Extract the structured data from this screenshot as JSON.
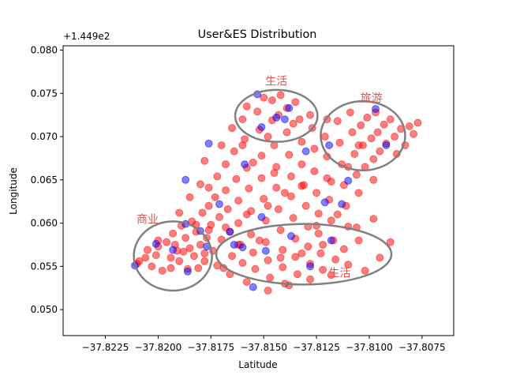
{
  "chart_data": {
    "type": "scatter",
    "title": "User&ES Distribution",
    "xlabel": "Latitude",
    "ylabel": "Longitude",
    "y_offset_label": "+1.449e2",
    "xlim": [
      -37.8245,
      -37.806
    ],
    "ylim": [
      0.047,
      0.0805
    ],
    "x_ticks": [
      -37.8225,
      -37.82,
      -37.8175,
      -37.815,
      -37.8125,
      -37.81,
      -37.8075
    ],
    "x_tick_labels": [
      "−37.8225",
      "−37.8200",
      "−37.8175",
      "−37.8150",
      "−37.8125",
      "−37.8100",
      "−37.8075"
    ],
    "y_ticks": [
      0.05,
      0.055,
      0.06,
      0.065,
      0.07,
      0.075,
      0.08
    ],
    "y_tick_labels": [
      "0.050",
      "0.055",
      "0.060",
      "0.065",
      "0.070",
      "0.075",
      "0.080"
    ],
    "grid": false,
    "legend": "none",
    "series": [
      {
        "color": "#ff0000",
        "opacity": 0.5,
        "points": [
          [
            -37.8209,
            0.0556
          ],
          [
            -37.8205,
            0.0569
          ],
          [
            -37.8203,
            0.055
          ],
          [
            -37.8201,
            0.0563
          ],
          [
            -37.82,
            0.0573
          ],
          [
            -37.8198,
            0.0545
          ],
          [
            -37.8196,
            0.0578
          ],
          [
            -37.8194,
            0.056
          ],
          [
            -37.8193,
            0.0588
          ],
          [
            -37.8191,
            0.0568
          ],
          [
            -37.819,
            0.0556
          ],
          [
            -37.8189,
            0.0597
          ],
          [
            -37.8187,
            0.0583
          ],
          [
            -37.8186,
            0.0547
          ],
          [
            -37.8185,
            0.0571
          ],
          [
            -37.8184,
            0.0602
          ],
          [
            -37.8183,
            0.0562
          ],
          [
            -37.8182,
            0.059
          ],
          [
            -37.8181,
            0.0548
          ],
          [
            -37.818,
            0.0575
          ],
          [
            -37.8179,
            0.0612
          ],
          [
            -37.8178,
            0.0556
          ],
          [
            -37.8177,
            0.0583
          ],
          [
            -37.8176,
            0.062
          ],
          [
            -37.8176,
            0.0641
          ],
          [
            -37.8175,
            0.0598
          ],
          [
            -37.8174,
            0.0568
          ],
          [
            -37.8173,
            0.063
          ],
          [
            -37.8172,
            0.0654
          ],
          [
            -37.8171,
            0.0607
          ],
          [
            -37.817,
            0.0581
          ],
          [
            -37.8169,
            0.0548
          ],
          [
            -37.8168,
            0.0668
          ],
          [
            -37.8168,
            0.0638
          ],
          [
            -37.8167,
            0.0616
          ],
          [
            -37.8166,
            0.059
          ],
          [
            -37.8165,
            0.0562
          ],
          [
            -37.8164,
            0.0683
          ],
          [
            -37.8163,
            0.0651
          ],
          [
            -37.8162,
            0.0626
          ],
          [
            -37.8162,
            0.06
          ],
          [
            -37.8161,
            0.0575
          ],
          [
            -37.816,
            0.0554
          ],
          [
            -37.8159,
            0.0697
          ],
          [
            -37.8158,
            0.0664
          ],
          [
            -37.8157,
            0.064
          ],
          [
            -37.8156,
            0.0614
          ],
          [
            -37.8156,
            0.0587
          ],
          [
            -37.8155,
            0.0566
          ],
          [
            -37.8154,
            0.0547
          ],
          [
            -37.8153,
            0.0729
          ],
          [
            -37.8152,
            0.0708
          ],
          [
            -37.8151,
            0.0678
          ],
          [
            -37.8151,
            0.0652
          ],
          [
            -37.815,
            0.0628
          ],
          [
            -37.8149,
            0.0603
          ],
          [
            -37.8149,
            0.0578
          ],
          [
            -37.8148,
            0.0557
          ],
          [
            -37.8147,
            0.0537
          ],
          [
            -37.8146,
            0.0742
          ],
          [
            -37.8146,
            0.0719
          ],
          [
            -37.8145,
            0.069
          ],
          [
            -37.8144,
            0.0665
          ],
          [
            -37.8144,
            0.0641
          ],
          [
            -37.8143,
            0.0616
          ],
          [
            -37.8142,
            0.0592
          ],
          [
            -37.8141,
            0.0569
          ],
          [
            -37.8141,
            0.0549
          ],
          [
            -37.814,
            0.053
          ],
          [
            -37.8139,
            0.0733
          ],
          [
            -37.8139,
            0.0705
          ],
          [
            -37.8138,
            0.0679
          ],
          [
            -37.8137,
            0.0654
          ],
          [
            -37.8137,
            0.0631
          ],
          [
            -37.8136,
            0.0606
          ],
          [
            -37.8135,
            0.0582
          ],
          [
            -37.8135,
            0.0561
          ],
          [
            -37.8134,
            0.0541
          ],
          [
            -37.8133,
            0.072
          ],
          [
            -37.8132,
            0.0694
          ],
          [
            -37.8132,
            0.0668
          ],
          [
            -37.8131,
            0.0644
          ],
          [
            -37.813,
            0.062
          ],
          [
            -37.8129,
            0.0596
          ],
          [
            -37.8129,
            0.0573
          ],
          [
            -37.8128,
            0.0553
          ],
          [
            -37.8127,
            0.071
          ],
          [
            -37.8126,
            0.0686
          ],
          [
            -37.8126,
            0.066
          ],
          [
            -37.8125,
            0.0635
          ],
          [
            -37.8124,
            0.0611
          ],
          [
            -37.8124,
            0.0588
          ],
          [
            -37.8123,
            0.0565
          ],
          [
            -37.8122,
            0.0546
          ],
          [
            -37.8121,
            0.07
          ],
          [
            -37.812,
            0.0677
          ],
          [
            -37.812,
            0.0652
          ],
          [
            -37.8119,
            0.0627
          ],
          [
            -37.8118,
            0.0603
          ],
          [
            -37.8117,
            0.058
          ],
          [
            -37.8116,
            0.0558
          ],
          [
            -37.8115,
            0.0718
          ],
          [
            -37.8114,
            0.0693
          ],
          [
            -37.8113,
            0.0668
          ],
          [
            -37.8112,
            0.0644
          ],
          [
            -37.8111,
            0.062
          ],
          [
            -37.811,
            0.0596
          ],
          [
            -37.8109,
            0.0728
          ],
          [
            -37.8108,
            0.0705
          ],
          [
            -37.8107,
            0.068
          ],
          [
            -37.8106,
            0.0656
          ],
          [
            -37.8105,
            0.0635
          ],
          [
            -37.8104,
            0.0713
          ],
          [
            -37.8103,
            0.069
          ],
          [
            -37.8102,
            0.0665
          ],
          [
            -37.8101,
            0.0722
          ],
          [
            -37.8099,
            0.0698
          ],
          [
            -37.8098,
            0.0674
          ],
          [
            -37.8097,
            0.0728
          ],
          [
            -37.8096,
            0.0705
          ],
          [
            -37.8095,
            0.0683
          ],
          [
            -37.8093,
            0.0714
          ],
          [
            -37.8092,
            0.0692
          ],
          [
            -37.809,
            0.072
          ],
          [
            -37.8088,
            0.07
          ],
          [
            -37.8087,
            0.068
          ],
          [
            -37.8085,
            0.0709
          ],
          [
            -37.8083,
            0.069
          ],
          [
            -37.8081,
            0.0712
          ],
          [
            -37.8079,
            0.0703
          ],
          [
            -37.8077,
            0.0716
          ],
          [
            -37.815,
            0.0745
          ],
          [
            -37.8142,
            0.0748
          ],
          [
            -37.8135,
            0.074
          ],
          [
            -37.8158,
            0.0735
          ],
          [
            -37.816,
            0.072
          ],
          [
            -37.8143,
            0.0725
          ],
          [
            -37.8136,
            0.0715
          ],
          [
            -37.8148,
            0.07
          ],
          [
            -37.8128,
            0.0725
          ],
          [
            -37.812,
            0.072
          ],
          [
            -37.8165,
            0.071
          ],
          [
            -37.817,
            0.069
          ],
          [
            -37.8178,
            0.0672
          ],
          [
            -37.8185,
            0.063
          ],
          [
            -37.819,
            0.0612
          ],
          [
            -37.818,
            0.0645
          ],
          [
            -37.816,
            0.069
          ],
          [
            -37.8155,
            0.067
          ],
          [
            -37.8145,
            0.0658
          ],
          [
            -37.8132,
            0.0643
          ],
          [
            -37.8118,
            0.0648
          ],
          [
            -37.811,
            0.0665
          ],
          [
            -37.8105,
            0.069
          ],
          [
            -37.8098,
            0.065
          ],
          [
            -37.8115,
            0.061
          ],
          [
            -37.8125,
            0.0597
          ],
          [
            -37.8105,
            0.058
          ],
          [
            -37.8098,
            0.0605
          ],
          [
            -37.809,
            0.0578
          ],
          [
            -37.8095,
            0.056
          ],
          [
            -37.8102,
            0.0545
          ],
          [
            -37.811,
            0.0552
          ],
          [
            -37.8118,
            0.054
          ],
          [
            -37.8128,
            0.0535
          ],
          [
            -37.8138,
            0.0528
          ],
          [
            -37.8148,
            0.0522
          ],
          [
            -37.8158,
            0.0532
          ],
          [
            -37.8166,
            0.0541
          ],
          [
            -37.8172,
            0.0551
          ],
          [
            -37.8178,
            0.0565
          ],
          [
            -37.8168,
            0.0595
          ],
          [
            -37.8158,
            0.061
          ],
          [
            -37.8148,
            0.062
          ],
          [
            -37.814,
            0.0635
          ],
          [
            -37.8152,
            0.058
          ],
          [
            -37.8162,
            0.0575
          ],
          [
            -37.8142,
            0.056
          ],
          [
            -37.8132,
            0.0565
          ],
          [
            -37.8122,
            0.0575
          ],
          [
            -37.8112,
            0.057
          ],
          [
            -37.8106,
            0.0595
          ],
          [
            -37.8194,
            0.0548
          ],
          [
            -37.8206,
            0.056
          ],
          [
            -37.8192,
            0.0575
          ],
          [
            -37.8182,
            0.0598
          ],
          [
            -37.8176,
            0.0592
          ],
          [
            -37.8188,
            0.0567
          ],
          [
            -37.82,
            0.058
          ],
          [
            -37.821,
            0.0553
          ]
        ]
      },
      {
        "color": "#0000ff",
        "opacity": 0.5,
        "points": [
          [
            -37.8211,
            0.0551
          ],
          [
            -37.8201,
            0.0576
          ],
          [
            -37.8193,
            0.0569
          ],
          [
            -37.8187,
            0.0599
          ],
          [
            -37.8186,
            0.0544
          ],
          [
            -37.8187,
            0.065
          ],
          [
            -37.818,
            0.0591
          ],
          [
            -37.8177,
            0.0573
          ],
          [
            -37.8176,
            0.0692
          ],
          [
            -37.8171,
            0.0622
          ],
          [
            -37.8166,
            0.059
          ],
          [
            -37.8164,
            0.0575
          ],
          [
            -37.816,
            0.0572
          ],
          [
            -37.8159,
            0.0668
          ],
          [
            -37.8155,
            0.0526
          ],
          [
            -37.8153,
            0.0749
          ],
          [
            -37.8151,
            0.0711
          ],
          [
            -37.8151,
            0.0607
          ],
          [
            -37.8149,
            0.0568
          ],
          [
            -37.8144,
            0.0722
          ],
          [
            -37.814,
            0.072
          ],
          [
            -37.8138,
            0.0733
          ],
          [
            -37.8137,
            0.0585
          ],
          [
            -37.813,
            0.0683
          ],
          [
            -37.8128,
            0.055
          ],
          [
            -37.8119,
            0.069
          ],
          [
            -37.8121,
            0.0624
          ],
          [
            -37.8118,
            0.058
          ],
          [
            -37.8113,
            0.0622
          ],
          [
            -37.811,
            0.0649
          ],
          [
            -37.8092,
            0.069
          ],
          [
            -37.8097,
            0.0732
          ]
        ]
      }
    ],
    "ellipses": [
      {
        "cx": -37.8193,
        "cy": 0.0562,
        "rx": 0.00185,
        "ry": 0.004,
        "color": "#808080",
        "linewidth": 2.5
      },
      {
        "cx": -37.8144,
        "cy": 0.0724,
        "rx": 0.00195,
        "ry": 0.003,
        "color": "#808080",
        "linewidth": 2.5
      },
      {
        "cx": -37.8103,
        "cy": 0.0701,
        "rx": 0.002,
        "ry": 0.004,
        "color": "#808080",
        "linewidth": 2.5
      },
      {
        "cx": -37.8131,
        "cy": 0.0564,
        "rx": 0.00415,
        "ry": 0.0035,
        "color": "#808080",
        "linewidth": 2.5
      }
    ],
    "annotations": [
      {
        "text": "商业",
        "x": -37.8205,
        "y": 0.06,
        "color": "#e8524d"
      },
      {
        "text": "生活",
        "x": -37.8144,
        "y": 0.076,
        "color": "#e8524d"
      },
      {
        "text": "旅游",
        "x": -37.8099,
        "y": 0.074,
        "color": "#e8524d"
      },
      {
        "text": "生活",
        "x": -37.8114,
        "y": 0.0538,
        "color": "#e8524d"
      }
    ]
  }
}
